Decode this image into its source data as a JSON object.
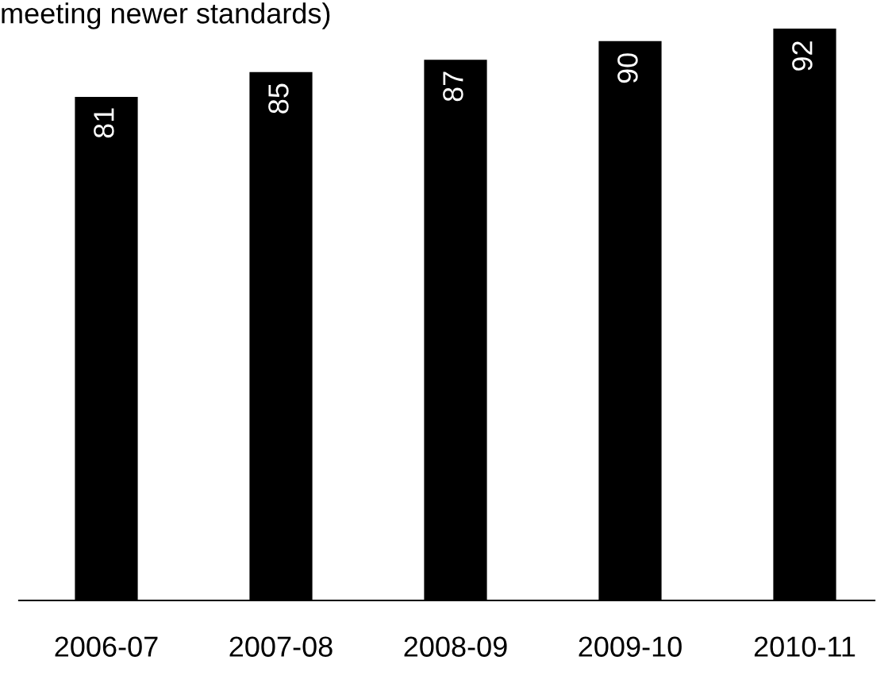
{
  "chart_data": {
    "type": "bar",
    "title": "meeting newer standards)",
    "categories": [
      "2006-07",
      "2007-08",
      "2008-09",
      "2009-10",
      "2010-11"
    ],
    "values": [
      81,
      85,
      87,
      90,
      92
    ],
    "color": "#000000",
    "data_labels": true,
    "grid": false,
    "legend": false
  }
}
